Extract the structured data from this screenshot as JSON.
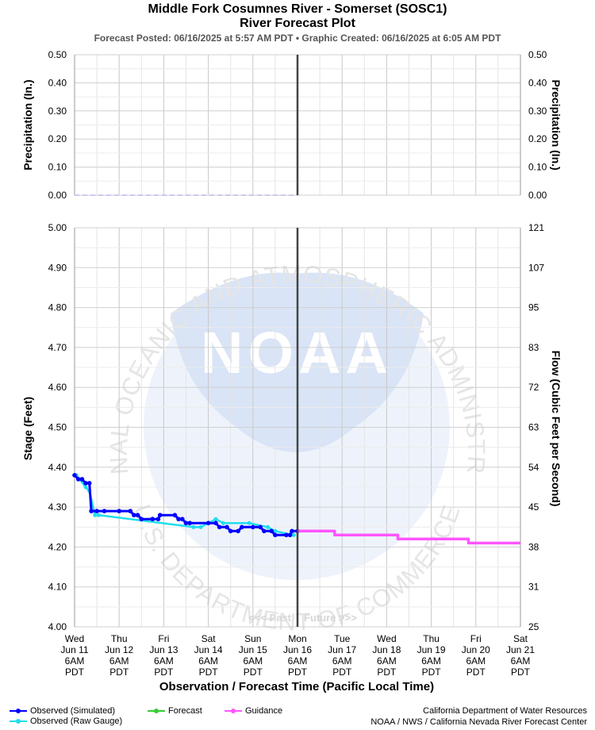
{
  "header": {
    "title_line1": "Middle Fork Cosumnes River - Somerset (SOSC1)",
    "title_line2": "River Forecast Plot",
    "posted": "Forecast Posted: 06/16/2025 at 5:57 AM PDT  •  Graphic Created: 06/16/2025 at 6:05 AM PDT"
  },
  "footer": {
    "credit_line1": "California Department of Water Resources",
    "credit_line2": "NOAA / NWS / California Nevada River Forecast Center"
  },
  "legend": [
    {
      "label": "Observed (Simulated)",
      "color": "#0000ff"
    },
    {
      "label": "Observed (Raw Gauge)",
      "color": "#22ddee"
    },
    {
      "label": "Forecast",
      "color": "#33cc33"
    },
    {
      "label": "Guidance",
      "color": "#ff55ff"
    }
  ],
  "watermark": {
    "logo_text": "NOAA",
    "ring_top": "NATIONAL OCEANIC AND ATMOSPHERIC ADMINISTRATION",
    "ring_bottom": "U.S. DEPARTMENT OF COMMERCE",
    "past": "<<< Past",
    "future": "Future >>>"
  },
  "chart_data": {
    "type": "line",
    "xlabel": "Observation / Forecast Time (Pacific Local Time)",
    "x_ticks": [
      {
        "day": "Wed",
        "date": "Jun 11",
        "time": "6AM",
        "tz": "PDT"
      },
      {
        "day": "Thu",
        "date": "Jun 12",
        "time": "6AM",
        "tz": "PDT"
      },
      {
        "day": "Fri",
        "date": "Jun 13",
        "time": "6AM",
        "tz": "PDT"
      },
      {
        "day": "Sat",
        "date": "Jun 14",
        "time": "6AM",
        "tz": "PDT"
      },
      {
        "day": "Sun",
        "date": "Jun 15",
        "time": "6AM",
        "tz": "PDT"
      },
      {
        "day": "Mon",
        "date": "Jun 16",
        "time": "6AM",
        "tz": "PDT"
      },
      {
        "day": "Tue",
        "date": "Jun 17",
        "time": "6AM",
        "tz": "PDT"
      },
      {
        "day": "Wed",
        "date": "Jun 18",
        "time": "6AM",
        "tz": "PDT"
      },
      {
        "day": "Thu",
        "date": "Jun 19",
        "time": "6AM",
        "tz": "PDT"
      },
      {
        "day": "Fri",
        "date": "Jun 20",
        "time": "6AM",
        "tz": "PDT"
      },
      {
        "day": "Sat",
        "date": "Jun 21",
        "time": "6AM",
        "tz": "PDT"
      }
    ],
    "xlim": [
      "Jun 11 6AM",
      "Jun 21 6AM"
    ],
    "now": "Jun 16 6AM",
    "precip": {
      "ylabel_left": "Precipitation (In.)",
      "ylabel_right": "Precipitation (In.)",
      "ylim": [
        0,
        0.5
      ],
      "ticks": [
        "0.00",
        "0.10",
        "0.20",
        "0.30",
        "0.40",
        "0.50"
      ],
      "series": [
        {
          "kind": "observed",
          "points": [
            [
              "Jun 11 6AM",
              0.0
            ],
            [
              "Jun 16 6AM",
              0.0
            ]
          ]
        }
      ]
    },
    "stage": {
      "ylabel_left": "Stage (Feet)",
      "ylabel_right": "Flow (Cubic Feet per Second)",
      "ylim": [
        4.0,
        5.0
      ],
      "ticks": [
        "4.00",
        "4.10",
        "4.20",
        "4.30",
        "4.40",
        "4.50",
        "4.60",
        "4.70",
        "4.80",
        "4.90",
        "5.00"
      ],
      "flow_ticks": [
        "25",
        "31",
        "38",
        "45",
        "54",
        "63",
        "72",
        "83",
        "95",
        "107",
        "121"
      ],
      "series": [
        {
          "name": "Observed (Simulated)",
          "points": [
            [
              "Jun 11 6AM",
              4.38
            ],
            [
              "Jun 11 8AM",
              4.37
            ],
            [
              "Jun 11 10AM",
              4.37
            ],
            [
              "Jun 11 12PM",
              4.36
            ],
            [
              "Jun 11 2PM",
              4.36
            ],
            [
              "Jun 11 3PM",
              4.29
            ],
            [
              "Jun 11 6PM",
              4.29
            ],
            [
              "Jun 11 10PM",
              4.29
            ],
            [
              "Jun 12 6AM",
              4.29
            ],
            [
              "Jun 12 12PM",
              4.29
            ],
            [
              "Jun 12 2PM",
              4.28
            ],
            [
              "Jun 12 4PM",
              4.28
            ],
            [
              "Jun 12 6PM",
              4.27
            ],
            [
              "Jun 13 12AM",
              4.27
            ],
            [
              "Jun 13 3AM",
              4.27
            ],
            [
              "Jun 13 4AM",
              4.28
            ],
            [
              "Jun 13 12PM",
              4.28
            ],
            [
              "Jun 13 2PM",
              4.27
            ],
            [
              "Jun 13 4PM",
              4.27
            ],
            [
              "Jun 13 6PM",
              4.26
            ],
            [
              "Jun 13 8PM",
              4.26
            ],
            [
              "Jun 14 6AM",
              4.26
            ],
            [
              "Jun 14 10AM",
              4.26
            ],
            [
              "Jun 14 12PM",
              4.25
            ],
            [
              "Jun 14 4PM",
              4.25
            ],
            [
              "Jun 14 6PM",
              4.24
            ],
            [
              "Jun 14 10PM",
              4.24
            ],
            [
              "Jun 15 12AM",
              4.25
            ],
            [
              "Jun 15 6AM",
              4.25
            ],
            [
              "Jun 15 10AM",
              4.25
            ],
            [
              "Jun 15 12PM",
              4.24
            ],
            [
              "Jun 15 4PM",
              4.24
            ],
            [
              "Jun 15 6PM",
              4.23
            ],
            [
              "Jun 16 12AM",
              4.23
            ],
            [
              "Jun 16 2AM",
              4.23
            ],
            [
              "Jun 16 3AM",
              4.24
            ],
            [
              "Jun 16 6AM",
              4.24
            ]
          ]
        },
        {
          "name": "Observed (Raw Gauge)",
          "points": [
            [
              "Jun 11 7AM",
              4.38
            ],
            [
              "Jun 11 12PM",
              4.35
            ],
            [
              "Jun 11 2PM",
              4.34
            ],
            [
              "Jun 11 5PM",
              4.28
            ],
            [
              "Jun 11 7PM",
              4.28
            ],
            [
              "Jun 13 10PM",
              4.25
            ],
            [
              "Jun 14 2AM",
              4.25
            ],
            [
              "Jun 14 10AM",
              4.27
            ],
            [
              "Jun 14 2PM",
              4.26
            ],
            [
              "Jun 15 4AM",
              4.26
            ],
            [
              "Jun 15 2PM",
              4.25
            ],
            [
              "Jun 15 6PM",
              4.24
            ],
            [
              "Jun 16 4AM",
              4.23
            ]
          ]
        },
        {
          "name": "Forecast",
          "points": []
        },
        {
          "name": "Guidance",
          "points": [
            [
              "Jun 16 6AM",
              4.24
            ],
            [
              "Jun 17 2AM",
              4.24
            ],
            [
              "Jun 17 2AM",
              4.23
            ],
            [
              "Jun 18 12PM",
              4.23
            ],
            [
              "Jun 18 12PM",
              4.22
            ],
            [
              "Jun 20 2AM",
              4.22
            ],
            [
              "Jun 20 2AM",
              4.21
            ],
            [
              "Jun 21 6AM",
              4.21
            ]
          ]
        }
      ]
    }
  }
}
